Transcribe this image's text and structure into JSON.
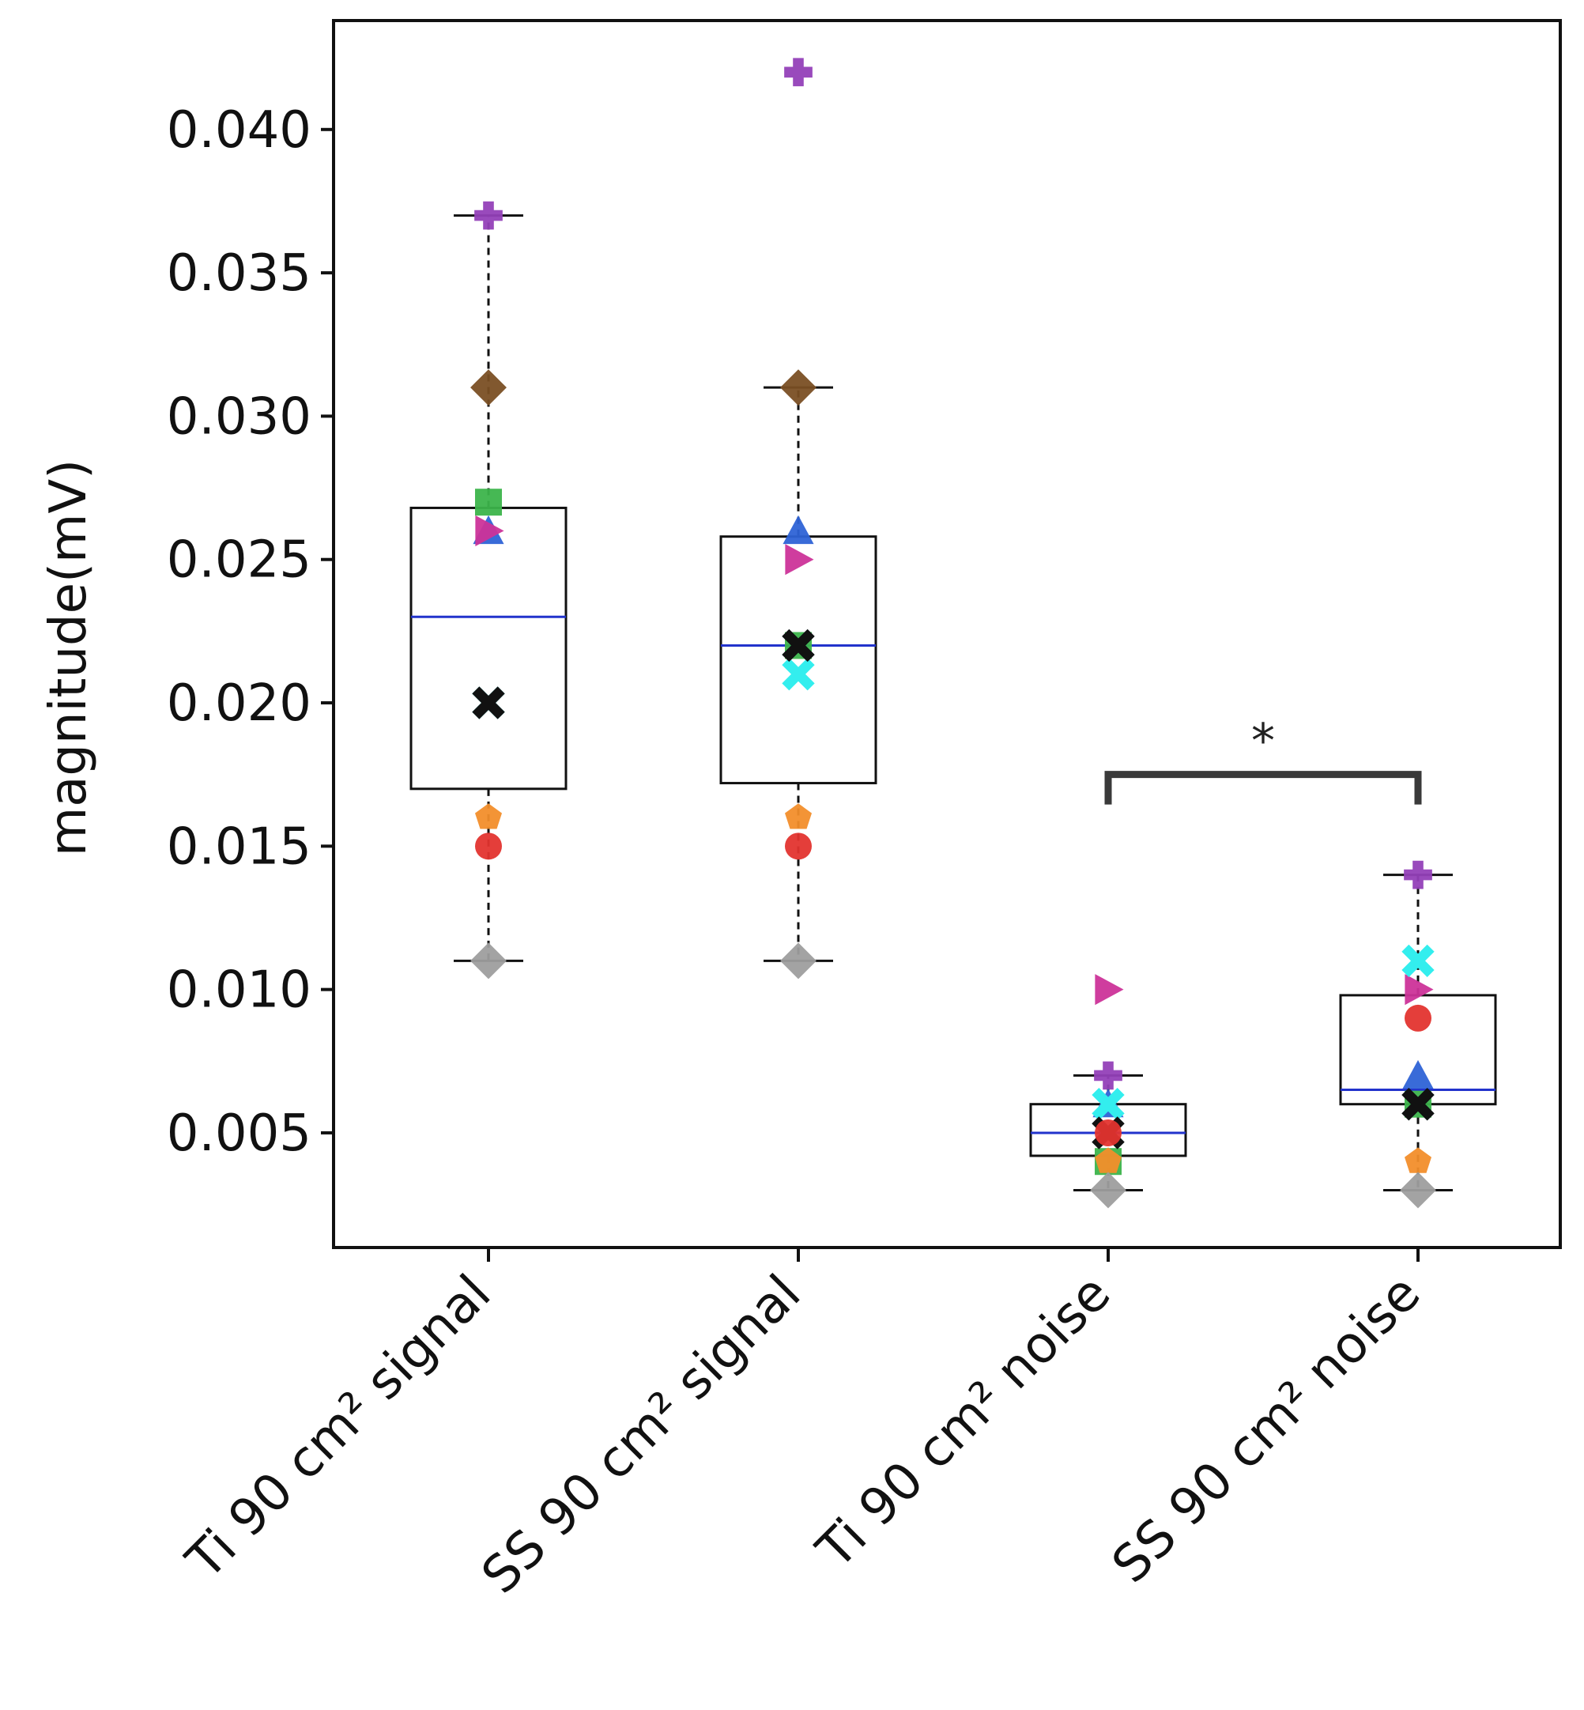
{
  "chart_data": {
    "type": "box",
    "title": "",
    "xlabel": "",
    "ylabel": "magnitude(mV)",
    "ylim": [
      0.001,
      0.0438
    ],
    "yticks": [
      0.005,
      0.01,
      0.015,
      0.02,
      0.025,
      0.03,
      0.035,
      0.04
    ],
    "ytick_labels": [
      "0.005",
      "0.010",
      "0.015",
      "0.020",
      "0.025",
      "0.030",
      "0.035",
      "0.040"
    ],
    "grid": false,
    "legend": "none",
    "categories": [
      "Ti 90 cm² signal",
      "SS 90 cm² signal",
      "Ti 90 cm² noise",
      "SS 90 cm² noise"
    ],
    "boxes": [
      {
        "q1": 0.017,
        "median": 0.023,
        "q3": 0.0268,
        "whisker_low": 0.011,
        "whisker_high": 0.037
      },
      {
        "q1": 0.0172,
        "median": 0.022,
        "q3": 0.0258,
        "whisker_low": 0.011,
        "whisker_high": 0.031
      },
      {
        "q1": 0.0042,
        "median": 0.005,
        "q3": 0.006,
        "whisker_low": 0.003,
        "whisker_high": 0.007
      },
      {
        "q1": 0.006,
        "median": 0.0065,
        "q3": 0.0098,
        "whisker_low": 0.003,
        "whisker_high": 0.014
      }
    ],
    "subjects": [
      {
        "marker": "plus",
        "color": "#9440b8",
        "values": [
          0.037,
          0.042,
          0.007,
          0.014
        ]
      },
      {
        "marker": "diamond",
        "color": "#7a4f24",
        "values": [
          0.031,
          0.031,
          null,
          null
        ]
      },
      {
        "marker": "square",
        "color": "#3cb44b",
        "values": [
          0.027,
          0.022,
          0.004,
          0.006
        ]
      },
      {
        "marker": "triangle-up",
        "color": "#2e63d6",
        "values": [
          0.026,
          0.026,
          0.006,
          0.007
        ]
      },
      {
        "marker": "triangle-right",
        "color": "#cc3399",
        "values": [
          0.026,
          0.025,
          0.01,
          0.01
        ]
      },
      {
        "marker": "x",
        "color": "#0f4a4a",
        "values": [
          0.02,
          0.022,
          0.005,
          0.006
        ]
      },
      {
        "marker": "x",
        "color": "#33eeee",
        "values": [
          0.02,
          0.021,
          0.006,
          0.011
        ]
      },
      {
        "marker": "x",
        "color": "#111111",
        "values": [
          0.02,
          0.022,
          0.005,
          0.006
        ]
      },
      {
        "marker": "pentagon",
        "color": "#f28e2b",
        "values": [
          0.016,
          0.016,
          0.004,
          0.004
        ]
      },
      {
        "marker": "circle",
        "color": "#e3342f",
        "values": [
          0.015,
          0.015,
          0.005,
          0.009
        ]
      },
      {
        "marker": "diamond",
        "color": "#9e9e9e",
        "values": [
          0.011,
          0.011,
          0.003,
          0.003
        ]
      }
    ],
    "colors": {
      "box_edge": "#111111",
      "median": "#2233cc",
      "whisker": "#111111",
      "bracket": "#3a3a3a"
    },
    "significance": {
      "from": 2,
      "to": 3,
      "y": 0.0175,
      "label": "*"
    }
  }
}
